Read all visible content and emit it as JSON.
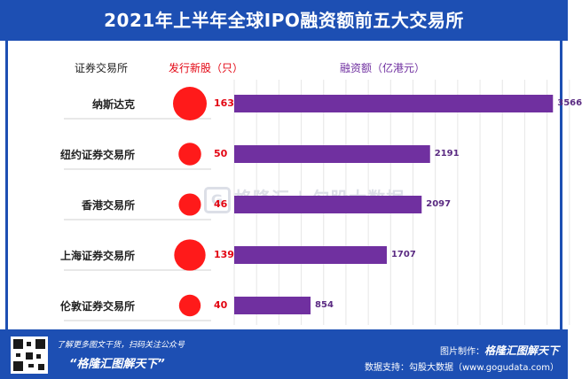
{
  "title": "2021年上半年全球IPO融资额前五大交易所",
  "chart_data": {
    "type": "bar",
    "columns": {
      "exchange": "证券交易所",
      "ipos": "发行新股（只）",
      "amount": "融资额（亿港元）"
    },
    "categories": [
      "纳斯达克",
      "纽约证券交易所",
      "香港交易所",
      "上海证券交易所",
      "伦敦证券交易所"
    ],
    "series": [
      {
        "name": "发行新股（只）",
        "values": [
          163,
          50,
          46,
          139,
          40
        ],
        "marker": "bubble"
      },
      {
        "name": "融资额（亿港元）",
        "values": [
          3566,
          2191,
          2097,
          1707,
          854
        ],
        "marker": "bar"
      }
    ],
    "xlim": [
      0,
      4000
    ],
    "grid": true,
    "colors": {
      "bubble": "#ff1a1a",
      "bar": "#7030a0",
      "ipo_text": "#e30613"
    }
  },
  "watermark": {
    "logo": "G",
    "brand": "格隆汇",
    "divider": "|",
    "partner": "勾股大数据"
  },
  "footer": {
    "line1": "了解更多图文干货，扫码关注公众号",
    "line2": "“格隆汇图解天下”",
    "made_by_label": "图片制作：",
    "made_by": "格隆汇图解天下",
    "source": "数据支持：勾股大数据（www.gogudata.com）"
  }
}
